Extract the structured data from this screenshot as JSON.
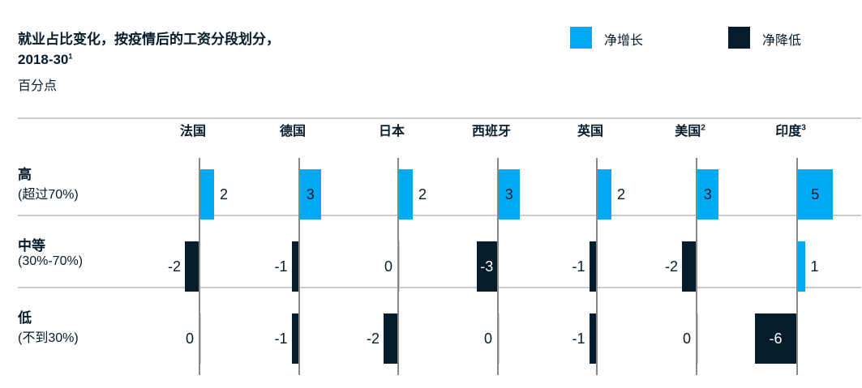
{
  "title": "就业占比变化，按疫情后的工资分段划分，",
  "title_line2": "2018-30",
  "title_footnote": "1",
  "unit": "百分点",
  "legend": [
    {
      "label": "净增长",
      "color": "#00a9f4"
    },
    {
      "label": "净降低",
      "color": "#051c2c"
    }
  ],
  "chart_data": {
    "type": "bar",
    "orientation": "horizontal-small-multiples",
    "categories": [
      {
        "label": "法国",
        "footnote": ""
      },
      {
        "label": "德国",
        "footnote": ""
      },
      {
        "label": "日本",
        "footnote": ""
      },
      {
        "label": "西班牙",
        "footnote": ""
      },
      {
        "label": "英国",
        "footnote": ""
      },
      {
        "label": "美国",
        "footnote": "2"
      },
      {
        "label": "印度",
        "footnote": "3"
      }
    ],
    "series": [
      {
        "name": "高",
        "sub": "(超过70%)",
        "values": [
          2,
          3,
          2,
          3,
          2,
          3,
          5
        ]
      },
      {
        "name": "中等",
        "sub": "(30%-70%)",
        "values": [
          -2,
          -1,
          0,
          -3,
          -1,
          -2,
          1
        ]
      },
      {
        "name": "低",
        "sub": "(不到30%)",
        "values": [
          0,
          -1,
          -2,
          0,
          -1,
          0,
          -6
        ]
      }
    ],
    "positive_color": "#00a9f4",
    "negative_color": "#051c2c"
  }
}
